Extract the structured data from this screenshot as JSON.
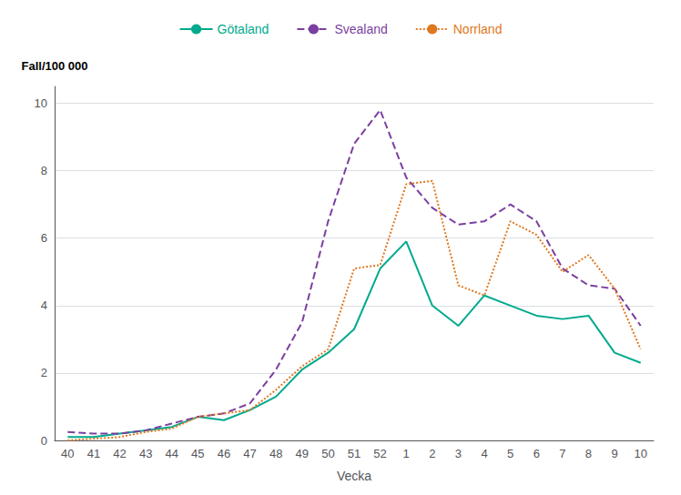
{
  "chart_data": {
    "type": "line",
    "xlabel": "Vecka",
    "ylabel": "Fall/100 000",
    "categories": [
      "40",
      "41",
      "42",
      "43",
      "44",
      "45",
      "46",
      "47",
      "48",
      "49",
      "50",
      "51",
      "52",
      "1",
      "2",
      "3",
      "4",
      "5",
      "6",
      "7",
      "8",
      "9",
      "10"
    ],
    "series": [
      {
        "name": "Götaland",
        "color": "#00AA8D",
        "line_style": "solid",
        "values": [
          0.1,
          0.1,
          0.2,
          0.3,
          0.4,
          0.7,
          0.6,
          0.9,
          1.3,
          2.1,
          2.6,
          3.3,
          5.1,
          5.9,
          4.0,
          3.4,
          4.3,
          4.0,
          3.7,
          3.6,
          3.7,
          2.6,
          2.3
        ]
      },
      {
        "name": "Svealand",
        "color": "#7B3FA0",
        "line_style": "dashed",
        "values": [
          0.25,
          0.2,
          0.2,
          0.3,
          0.5,
          0.7,
          0.8,
          1.1,
          2.1,
          3.5,
          6.5,
          8.8,
          9.8,
          7.8,
          6.9,
          6.4,
          6.5,
          7.0,
          6.5,
          5.1,
          4.6,
          4.5,
          3.4
        ]
      },
      {
        "name": "Norrland",
        "color": "#E07820",
        "line_style": "dotted",
        "values": [
          0.0,
          0.05,
          0.1,
          0.25,
          0.35,
          0.7,
          0.8,
          0.9,
          1.5,
          2.2,
          2.7,
          5.1,
          5.2,
          7.6,
          7.7,
          4.6,
          4.3,
          6.5,
          6.1,
          5.0,
          5.5,
          4.5,
          2.7
        ]
      }
    ],
    "ylim": [
      0,
      10.5
    ],
    "yticks": [
      0,
      2,
      4,
      6,
      8,
      10
    ],
    "grid": true,
    "legend": "top"
  }
}
